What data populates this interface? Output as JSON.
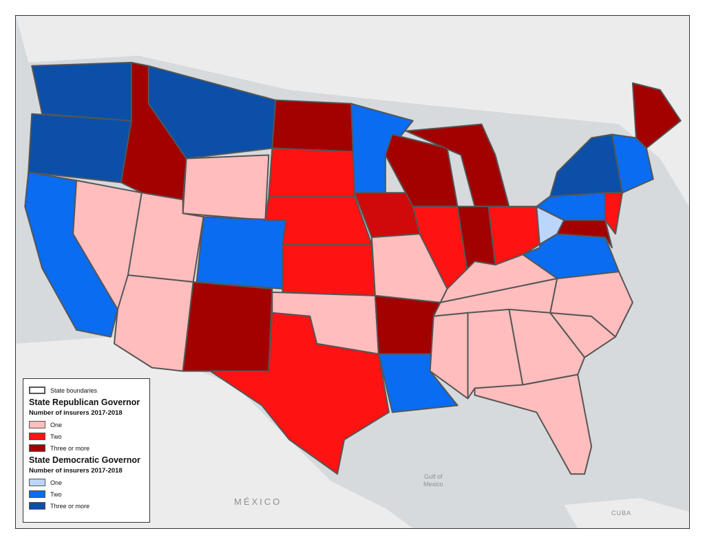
{
  "map_labels": {
    "mexico": "MÉXICO",
    "gulf": "Gulf of\nMexico",
    "cuba": "CUBA"
  },
  "legend": {
    "boundaries_label": "State boundaries",
    "republican": {
      "title": "State Republican Governor",
      "subtitle": "Number of insurers 2017-2018",
      "items": [
        {
          "label": "One",
          "color": "#ffbdbd"
        },
        {
          "label": "Two",
          "color": "#ff1212"
        },
        {
          "label": "Three or more",
          "color": "#a30000"
        }
      ]
    },
    "democratic": {
      "title": "State Democratic Governor",
      "subtitle": "Number of insurers 2017-2018",
      "items": [
        {
          "label": "One",
          "color": "#bcd5fb"
        },
        {
          "label": "Two",
          "color": "#0a6cf0"
        },
        {
          "label": "Three or more",
          "color": "#0b4fa8"
        }
      ]
    }
  }
}
